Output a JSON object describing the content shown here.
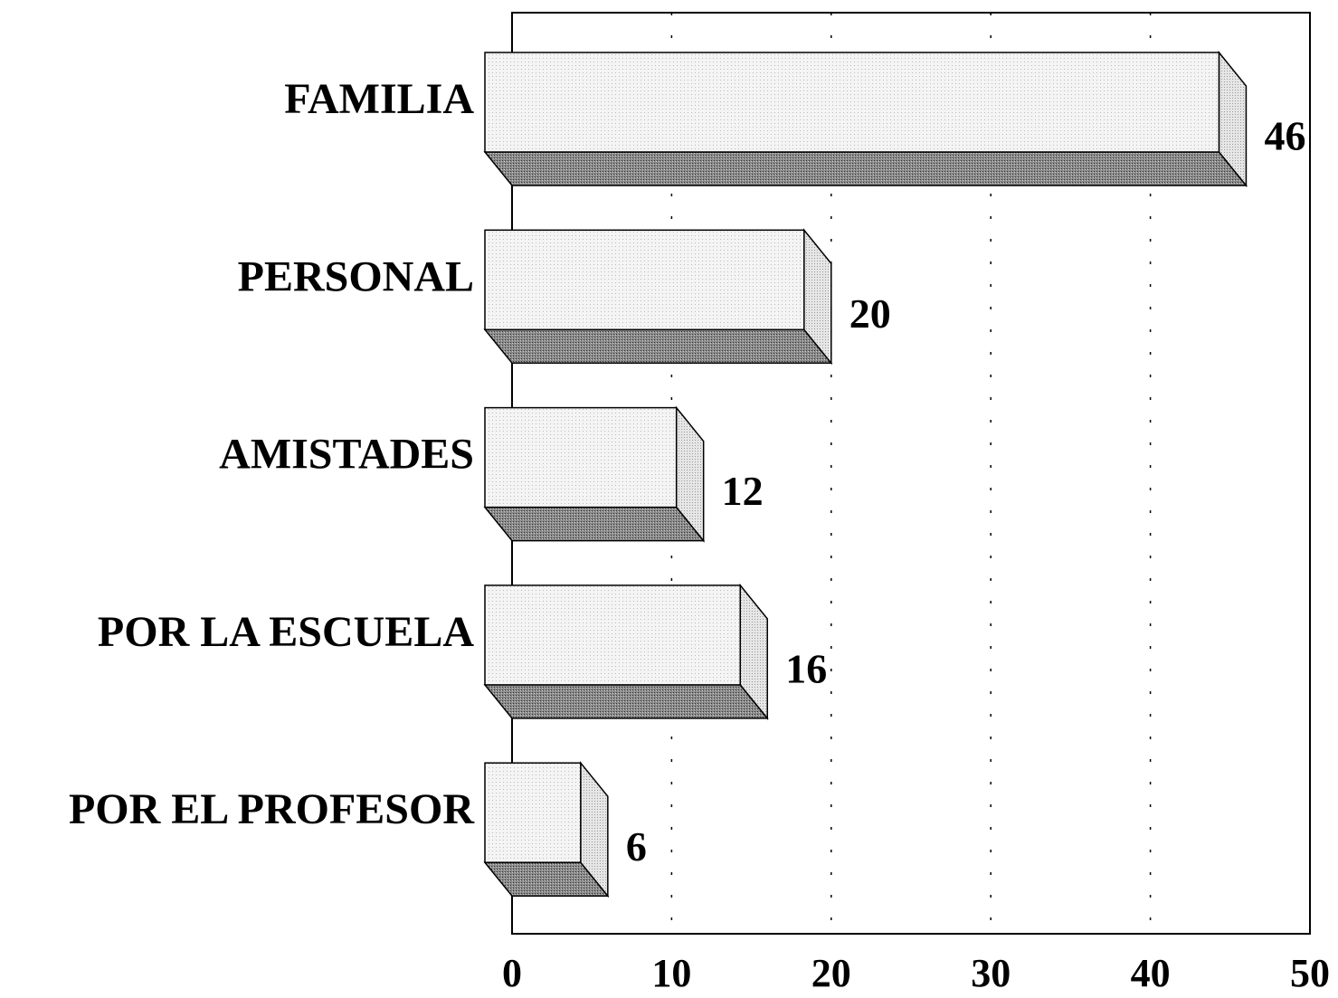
{
  "chart_data": {
    "type": "bar",
    "orientation": "horizontal",
    "categories": [
      "FAMILIA",
      "PERSONAL",
      "AMISTADES",
      "POR LA ESCUELA",
      "POR EL PROFESOR"
    ],
    "values": [
      46,
      20,
      12,
      16,
      6
    ],
    "xlim": [
      0,
      50
    ],
    "xticks": [
      0,
      10,
      20,
      30,
      40,
      50
    ],
    "grid": true
  }
}
